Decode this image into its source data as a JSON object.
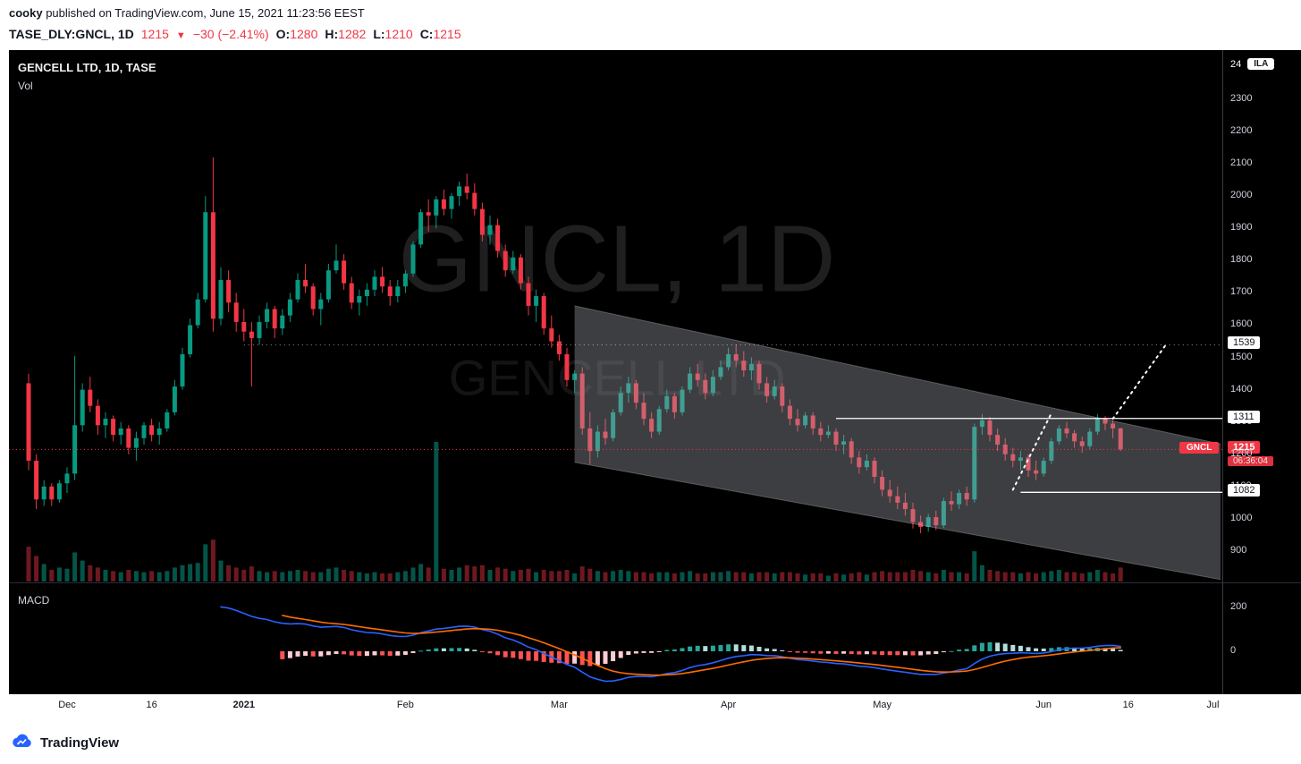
{
  "header": {
    "author": "cooky",
    "published_text": "published on TradingView.com, June 15, 2021 11:23:56 EEST",
    "symbol_line": {
      "symbol": "TASE_DLY:GNCL, 1D",
      "last_price": "1215",
      "direction_icon": "▼",
      "change": "−30 (−2.41%)",
      "open_label": "O:",
      "open": "1280",
      "high_label": "H:",
      "high": "1282",
      "low_label": "L:",
      "low": "1210",
      "close_label": "C:",
      "close": "1215"
    }
  },
  "legend": {
    "title": "GENCELL LTD, 1D, TASE",
    "volume_label": "Vol",
    "macd_label": "MACD"
  },
  "watermark": {
    "line1": "GNCL, 1D",
    "line2": "GENCELL LTD"
  },
  "price_scale": {
    "unit_value": "24",
    "unit_badge": "ILA",
    "ticks": [
      2300,
      2200,
      2100,
      2000,
      1900,
      1800,
      1700,
      1600,
      1500,
      1400,
      1300,
      1200,
      1100,
      1000,
      900
    ],
    "last": {
      "tag": "GNCL",
      "price": "1215",
      "countdown": "06:36:04"
    }
  },
  "macd_scale": {
    "ticks": [
      200,
      0
    ]
  },
  "time_scale": {
    "labels": [
      {
        "text": "Dec",
        "idx": 5
      },
      {
        "text": "16",
        "idx": 16
      },
      {
        "text": "2021",
        "idx": 28,
        "bold": true
      },
      {
        "text": "Feb",
        "idx": 49
      },
      {
        "text": "Mar",
        "idx": 69
      },
      {
        "text": "Apr",
        "idx": 91
      },
      {
        "text": "May",
        "idx": 111
      },
      {
        "text": "Jun",
        "idx": 132
      },
      {
        "text": "16",
        "idx": 143
      },
      {
        "text": "Jul",
        "idx": 154
      }
    ]
  },
  "footer": {
    "brand": "TradingView"
  },
  "colors": {
    "up": "#089981",
    "down": "#F23645",
    "vol_up": "rgba(8,153,129,0.55)",
    "vol_down": "rgba(242,54,69,0.45)",
    "macd_line": "#2962FF",
    "signal_line": "#FF6D00",
    "hist_up_grow": "#26A69A",
    "hist_up_fall": "#B2DFDB",
    "hist_down_grow": "#FF5252",
    "hist_down_fall": "#FFCDD2",
    "channel_fill": "rgba(160,163,174,0.38)",
    "channel_edge": "rgba(255,255,255,0.25)",
    "level_white": "#FFFFFF",
    "dotted_gray": "rgba(255,255,255,0.55)",
    "accent_red": "#F23645",
    "brand_blue": "#2962FF"
  },
  "chart_data": {
    "type": "candlestick",
    "title": "GENCELL LTD, 1D, TASE",
    "symbol": "GNCL",
    "interval": "1D",
    "exchange": "TASE",
    "ylim": [
      810,
      2450
    ],
    "macd_ylim": [
      -190,
      310
    ],
    "macd_params": [
      12,
      26,
      9
    ],
    "last_price": 1215,
    "candles_format": [
      "open",
      "high",
      "low",
      "close",
      "relative_volume"
    ],
    "candles": [
      [
        1420,
        1450,
        1150,
        1180,
        3
      ],
      [
        1180,
        1200,
        1030,
        1060,
        2.2
      ],
      [
        1060,
        1120,
        1040,
        1100,
        1.5
      ],
      [
        1100,
        1110,
        1040,
        1060,
        1
      ],
      [
        1060,
        1120,
        1050,
        1110,
        1.2
      ],
      [
        1110,
        1160,
        1080,
        1140,
        1.1
      ],
      [
        1140,
        1505,
        1120,
        1290,
        2.5
      ],
      [
        1290,
        1420,
        1270,
        1400,
        1.8
      ],
      [
        1400,
        1440,
        1330,
        1350,
        1.4
      ],
      [
        1350,
        1370,
        1260,
        1290,
        1.2
      ],
      [
        1290,
        1330,
        1250,
        1310,
        1
      ],
      [
        1310,
        1320,
        1240,
        1260,
        0.9
      ],
      [
        1260,
        1300,
        1230,
        1280,
        0.8
      ],
      [
        1280,
        1290,
        1200,
        1220,
        1
      ],
      [
        1220,
        1270,
        1180,
        1250,
        0.9
      ],
      [
        1250,
        1300,
        1230,
        1290,
        0.8
      ],
      [
        1290,
        1310,
        1240,
        1260,
        0.9
      ],
      [
        1260,
        1300,
        1230,
        1280,
        0.8
      ],
      [
        1280,
        1340,
        1270,
        1330,
        0.9
      ],
      [
        1330,
        1430,
        1320,
        1410,
        1.2
      ],
      [
        1410,
        1530,
        1400,
        1510,
        1.4
      ],
      [
        1510,
        1620,
        1500,
        1600,
        1.5
      ],
      [
        1600,
        1700,
        1590,
        1680,
        1.6
      ],
      [
        1680,
        2000,
        1670,
        1950,
        3.2
      ],
      [
        1950,
        2120,
        1580,
        1620,
        3.6
      ],
      [
        1620,
        1780,
        1600,
        1740,
        1.8
      ],
      [
        1740,
        1770,
        1640,
        1670,
        1.4
      ],
      [
        1670,
        1700,
        1580,
        1610,
        1.2
      ],
      [
        1610,
        1650,
        1550,
        1580,
        1
      ],
      [
        1580,
        1610,
        1410,
        1560,
        1.3
      ],
      [
        1560,
        1630,
        1540,
        1610,
        0.9
      ],
      [
        1610,
        1670,
        1590,
        1650,
        0.8
      ],
      [
        1650,
        1660,
        1560,
        1590,
        0.9
      ],
      [
        1590,
        1650,
        1570,
        1630,
        0.8
      ],
      [
        1630,
        1700,
        1610,
        1680,
        0.9
      ],
      [
        1680,
        1760,
        1670,
        1740,
        1
      ],
      [
        1740,
        1790,
        1700,
        1720,
        0.9
      ],
      [
        1720,
        1730,
        1630,
        1650,
        0.8
      ],
      [
        1650,
        1700,
        1600,
        1680,
        0.8
      ],
      [
        1680,
        1790,
        1670,
        1770,
        1.1
      ],
      [
        1770,
        1850,
        1760,
        1800,
        1.2
      ],
      [
        1800,
        1820,
        1710,
        1730,
        1
      ],
      [
        1730,
        1750,
        1650,
        1670,
        0.9
      ],
      [
        1670,
        1710,
        1630,
        1690,
        0.8
      ],
      [
        1690,
        1730,
        1660,
        1710,
        0.7
      ],
      [
        1710,
        1770,
        1690,
        1750,
        0.8
      ],
      [
        1750,
        1780,
        1700,
        1720,
        0.7
      ],
      [
        1720,
        1740,
        1660,
        1690,
        0.7
      ],
      [
        1690,
        1740,
        1670,
        1720,
        0.8
      ],
      [
        1720,
        1770,
        1700,
        1760,
        0.9
      ],
      [
        1760,
        1860,
        1750,
        1850,
        1.2
      ],
      [
        1850,
        1960,
        1840,
        1950,
        1.5
      ],
      [
        1950,
        1990,
        1890,
        1940,
        1.2
      ],
      [
        1940,
        2000,
        1900,
        1990,
        12
      ],
      [
        1990,
        2020,
        1940,
        1960,
        1.1
      ],
      [
        1960,
        2010,
        1930,
        2000,
        1
      ],
      [
        2000,
        2045,
        1970,
        2030,
        1.2
      ],
      [
        2030,
        2070,
        1990,
        2010,
        1.4
      ],
      [
        2010,
        2040,
        1940,
        1960,
        1.3
      ],
      [
        1960,
        1980,
        1860,
        1880,
        1.4
      ],
      [
        1880,
        1940,
        1850,
        1910,
        1
      ],
      [
        1910,
        1930,
        1810,
        1830,
        1.2
      ],
      [
        1830,
        1850,
        1750,
        1770,
        1.1
      ],
      [
        1770,
        1830,
        1760,
        1810,
        0.9
      ],
      [
        1810,
        1820,
        1710,
        1730,
        1
      ],
      [
        1730,
        1750,
        1630,
        1660,
        1.1
      ],
      [
        1660,
        1710,
        1610,
        1690,
        0.8
      ],
      [
        1690,
        1700,
        1570,
        1590,
        1
      ],
      [
        1590,
        1630,
        1530,
        1550,
        0.9
      ],
      [
        1550,
        1570,
        1490,
        1510,
        0.9
      ],
      [
        1510,
        1530,
        1410,
        1430,
        1
      ],
      [
        1430,
        1460,
        1390,
        1450,
        0.7
      ],
      [
        1450,
        1470,
        1260,
        1280,
        1.3
      ],
      [
        1280,
        1330,
        1170,
        1210,
        1.1
      ],
      [
        1210,
        1290,
        1190,
        1270,
        0.9
      ],
      [
        1270,
        1310,
        1230,
        1250,
        0.8
      ],
      [
        1250,
        1340,
        1240,
        1330,
        0.9
      ],
      [
        1330,
        1410,
        1320,
        1390,
        1
      ],
      [
        1390,
        1440,
        1360,
        1420,
        0.9
      ],
      [
        1420,
        1430,
        1340,
        1360,
        0.8
      ],
      [
        1360,
        1390,
        1290,
        1310,
        0.8
      ],
      [
        1310,
        1330,
        1250,
        1270,
        0.7
      ],
      [
        1270,
        1350,
        1260,
        1340,
        0.8
      ],
      [
        1340,
        1400,
        1330,
        1380,
        0.8
      ],
      [
        1380,
        1390,
        1310,
        1330,
        0.7
      ],
      [
        1330,
        1410,
        1320,
        1400,
        0.8
      ],
      [
        1400,
        1470,
        1390,
        1450,
        0.9
      ],
      [
        1450,
        1480,
        1410,
        1430,
        0.7
      ],
      [
        1430,
        1450,
        1370,
        1390,
        0.7
      ],
      [
        1390,
        1460,
        1380,
        1440,
        0.8
      ],
      [
        1440,
        1490,
        1430,
        1470,
        0.8
      ],
      [
        1470,
        1530,
        1460,
        1510,
        0.9
      ],
      [
        1510,
        1540,
        1470,
        1490,
        0.8
      ],
      [
        1490,
        1520,
        1440,
        1460,
        0.8
      ],
      [
        1460,
        1500,
        1430,
        1480,
        0.7
      ],
      [
        1480,
        1490,
        1400,
        1420,
        0.8
      ],
      [
        1420,
        1440,
        1360,
        1380,
        0.8
      ],
      [
        1380,
        1430,
        1370,
        1410,
        0.7
      ],
      [
        1410,
        1420,
        1330,
        1350,
        0.8
      ],
      [
        1350,
        1370,
        1290,
        1310,
        0.8
      ],
      [
        1310,
        1340,
        1270,
        1290,
        0.7
      ],
      [
        1290,
        1330,
        1280,
        1320,
        0.6
      ],
      [
        1320,
        1330,
        1260,
        1280,
        0.7
      ],
      [
        1280,
        1300,
        1240,
        1260,
        0.7
      ],
      [
        1260,
        1290,
        1250,
        1270,
        0.5
      ],
      [
        1270,
        1280,
        1210,
        1230,
        0.7
      ],
      [
        1230,
        1260,
        1200,
        1240,
        0.6
      ],
      [
        1240,
        1250,
        1170,
        1190,
        0.7
      ],
      [
        1190,
        1210,
        1140,
        1160,
        0.8
      ],
      [
        1160,
        1200,
        1150,
        1180,
        0.6
      ],
      [
        1180,
        1190,
        1110,
        1130,
        0.8
      ],
      [
        1130,
        1150,
        1070,
        1090,
        0.9
      ],
      [
        1090,
        1120,
        1050,
        1070,
        0.8
      ],
      [
        1070,
        1100,
        1030,
        1050,
        0.8
      ],
      [
        1050,
        1080,
        1010,
        1030,
        0.8
      ],
      [
        1030,
        1050,
        970,
        990,
        1
      ],
      [
        990,
        1010,
        955,
        975,
        0.9
      ],
      [
        975,
        1015,
        960,
        1005,
        0.8
      ],
      [
        1005,
        1025,
        965,
        980,
        0.7
      ],
      [
        980,
        1065,
        972,
        1055,
        1
      ],
      [
        1055,
        1085,
        1025,
        1045,
        0.8
      ],
      [
        1045,
        1090,
        1030,
        1080,
        0.8
      ],
      [
        1080,
        1100,
        1040,
        1060,
        0.7
      ],
      [
        1060,
        1295,
        1050,
        1285,
        2.6
      ],
      [
        1285,
        1325,
        1260,
        1305,
        1.4
      ],
      [
        1305,
        1315,
        1240,
        1260,
        1
      ],
      [
        1260,
        1280,
        1210,
        1230,
        0.9
      ],
      [
        1230,
        1250,
        1180,
        1200,
        0.8
      ],
      [
        1200,
        1220,
        1160,
        1180,
        0.8
      ],
      [
        1180,
        1210,
        1150,
        1190,
        0.7
      ],
      [
        1190,
        1200,
        1130,
        1150,
        0.8
      ],
      [
        1150,
        1180,
        1120,
        1140,
        0.7
      ],
      [
        1140,
        1190,
        1130,
        1180,
        0.8
      ],
      [
        1180,
        1250,
        1170,
        1240,
        0.9
      ],
      [
        1240,
        1290,
        1230,
        1280,
        1
      ],
      [
        1280,
        1300,
        1250,
        1265,
        0.8
      ],
      [
        1265,
        1275,
        1220,
        1240,
        0.8
      ],
      [
        1240,
        1255,
        1205,
        1225,
        0.7
      ],
      [
        1225,
        1280,
        1215,
        1270,
        0.8
      ],
      [
        1270,
        1325,
        1260,
        1310,
        1
      ],
      [
        1310,
        1318,
        1275,
        1295,
        0.8
      ],
      [
        1295,
        1305,
        1250,
        1280,
        0.7
      ],
      [
        1280,
        1282,
        1210,
        1215,
        1.2
      ]
    ],
    "levels": [
      {
        "label": "1539",
        "price": 1539,
        "from_idx": 28,
        "style": "dotted",
        "color": "dotted_gray",
        "width": 1
      },
      {
        "label": "1311",
        "price": 1311,
        "from_idx": 105,
        "style": "solid",
        "color": "level_white",
        "width": 1.3
      },
      {
        "label": "1082",
        "price": 1082,
        "from_idx": 129,
        "style": "solid",
        "color": "level_white",
        "width": 1.3
      }
    ],
    "channel": {
      "from": {
        "idx": 71,
        "top": 1660,
        "bottom": 1175
      },
      "to": {
        "idx": 155,
        "top": 1232,
        "bottom": 812
      }
    },
    "arrows": [
      [
        [
          128,
          1090
        ],
        [
          133,
          1327
        ]
      ],
      [
        [
          141,
          1310
        ],
        [
          148,
          1543
        ]
      ]
    ]
  }
}
